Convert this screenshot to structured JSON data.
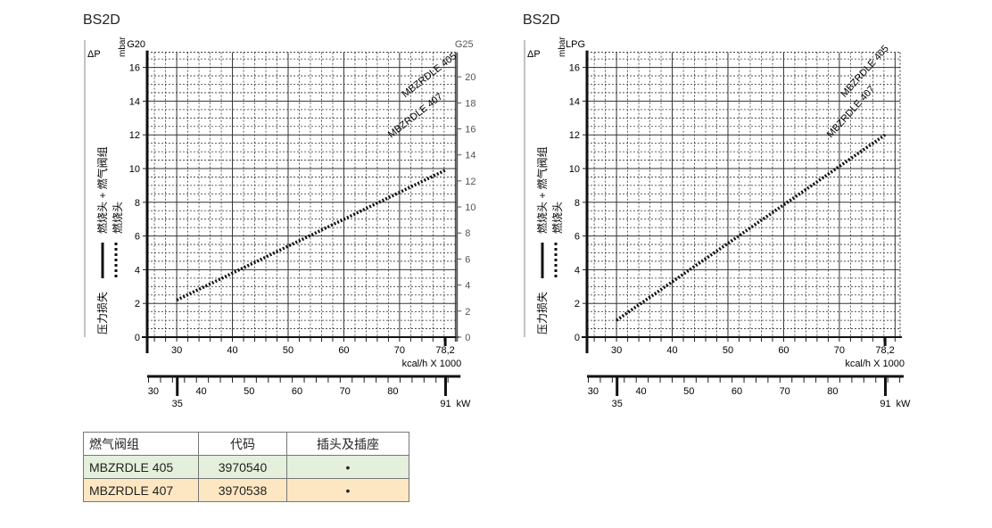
{
  "chart_data": [
    {
      "type": "line",
      "title": "BS2D",
      "gas_left": "G20",
      "gas_right": "G25",
      "ylabel": "ΔP",
      "yunit": "mbar",
      "ylim": [
        0,
        16.9
      ],
      "yticks": [
        0,
        2,
        4,
        6,
        8,
        10,
        12,
        14,
        16
      ],
      "right_ticks": [
        0,
        2,
        4,
        6,
        8,
        10,
        12,
        14,
        16,
        18,
        20
      ],
      "right_factor": 1.295,
      "xlim": [
        24.7,
        80.3
      ],
      "xticks": [
        "30",
        "40",
        "50",
        "60",
        "70",
        "78,2"
      ],
      "xtick_values": [
        30,
        40,
        50,
        60,
        70,
        78.2
      ],
      "xlabel": "kcal/h X 1000",
      "kw_ticks": [
        30,
        40,
        50,
        60,
        70,
        80
      ],
      "kw_major": [
        "35",
        "91"
      ],
      "kw_major_values": [
        35,
        91
      ],
      "kw_unit": "kW",
      "series": [
        {
          "name": "燃烧头",
          "style": "dotted",
          "x": [
            30,
            78.2
          ],
          "y": [
            2.2,
            9.9
          ]
        }
      ],
      "annotations": [
        "MBZRDLE 405",
        "MBZRDLE 407"
      ],
      "legend": {
        "solid": "燃烧头 + 燃气阀组",
        "dotted": "燃烧头",
        "caption": "压力损失"
      }
    },
    {
      "type": "line",
      "title": "BS2D",
      "gas_left": "LPG",
      "gas_right": "",
      "ylabel": "ΔP",
      "yunit": "mbar",
      "ylim": [
        0,
        16.9
      ],
      "yticks": [
        0,
        2,
        4,
        6,
        8,
        10,
        12,
        14,
        16
      ],
      "right_ticks": [],
      "right_factor": 1,
      "xlim": [
        24.7,
        80.9
      ],
      "xticks": [
        "30",
        "40",
        "50",
        "60",
        "70",
        "78,2"
      ],
      "xtick_values": [
        30,
        40,
        50,
        60,
        70,
        78.2
      ],
      "xlabel": "kcal/h X 1000",
      "kw_ticks": [
        30,
        40,
        50,
        60,
        70,
        80
      ],
      "kw_major": [
        "35",
        "91"
      ],
      "kw_major_values": [
        35,
        91
      ],
      "kw_unit": "kW",
      "series": [
        {
          "name": "燃烧头",
          "style": "dotted",
          "x": [
            30,
            78.2
          ],
          "y": [
            1.0,
            12.0
          ]
        }
      ],
      "annotations": [
        "MBZRDLE 405",
        "MBZRDLE 407"
      ],
      "legend": {
        "solid": "燃烧头 + 燃气阀组",
        "dotted": "燃烧头",
        "caption": "压力损失"
      }
    }
  ],
  "table": {
    "headers": [
      "燃气阀组",
      "代码",
      "插头及插座"
    ],
    "rows": [
      [
        "MBZRDLE 405",
        "3970540",
        "•"
      ],
      [
        "MBZRDLE 407",
        "3970538",
        "•"
      ]
    ],
    "row_colors": [
      "#e4efdc",
      "#fde7c2"
    ]
  }
}
